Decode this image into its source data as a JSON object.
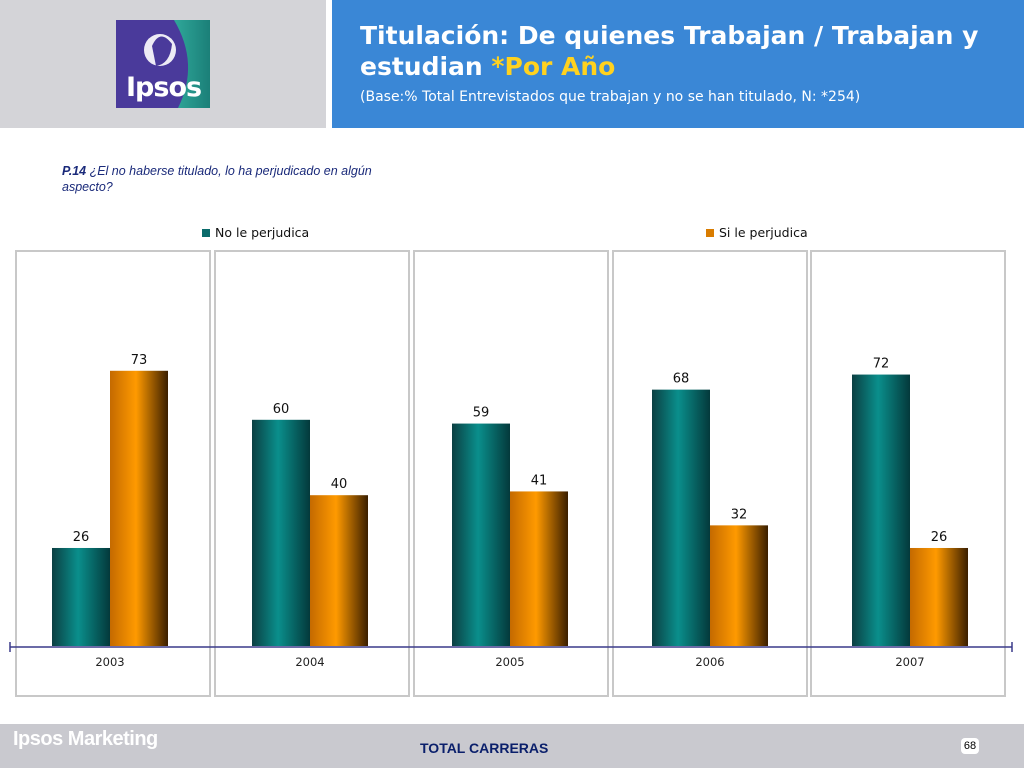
{
  "header": {
    "logo_text": "Ipsos",
    "title_main": "Titulación: De quienes Trabajan / Trabajan y estudian ",
    "title_accent": "*Por Año",
    "subtitle": "(Base:% Total Entrevistados que  trabajan y no se han titulado, N: *254)"
  },
  "question": {
    "code": "P.14",
    "text": " ¿El no haberse titulado, lo ha perjudicado en algún aspecto?"
  },
  "colors": {
    "header_blue": "#3a87d6",
    "accent_yellow": "#ffd21f",
    "teal": "#008080",
    "orange": "#ff9900"
  },
  "chart_data": {
    "type": "bar",
    "categories": [
      "2003",
      "2004",
      "2005",
      "2006",
      "2007"
    ],
    "series": [
      {
        "name": "No le perjudica",
        "values": [
          26,
          60,
          59,
          68,
          72
        ]
      },
      {
        "name": "Si le perjudica",
        "values": [
          73,
          40,
          41,
          32,
          26
        ]
      }
    ],
    "ylim": [
      0,
      100
    ],
    "grid": false,
    "legend": "top"
  },
  "footer": {
    "brand": "Ipsos Marketing",
    "center": "TOTAL CARRERAS",
    "page": "68"
  }
}
